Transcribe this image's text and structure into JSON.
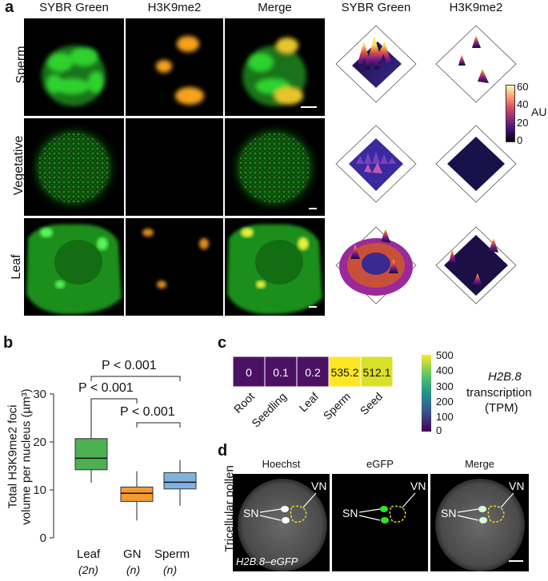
{
  "panel_a": {
    "letter": "a",
    "columns": [
      "SYBR Green",
      "H3K9me2",
      "Merge",
      "SYBR Green",
      "H3K9me2"
    ],
    "rows": [
      "Sperm",
      "Vegetative",
      "Leaf"
    ],
    "colorbar": {
      "ticks": [
        "60",
        "40",
        "20",
        "0"
      ],
      "label": "AU"
    }
  },
  "panel_b": {
    "letter": "b",
    "ylabel_line1": "Total H3K9me2 foci",
    "ylabel_line2": "volume per nucleus (µm³)",
    "yticks": [
      "0",
      "10",
      "20",
      "30"
    ],
    "categories": [
      "Leaf",
      "GN",
      "Sperm"
    ],
    "sublabels": [
      "(2n)",
      "(n)",
      "(n)"
    ],
    "annotations": [
      "P < 0.001",
      "P < 0.001",
      "P < 0.001"
    ],
    "colors": {
      "Leaf": "#4caf50",
      "GN": "#f39a33",
      "Sperm": "#7fb3dd"
    }
  },
  "chart_data": [
    {
      "type": "box",
      "categories": [
        "Leaf",
        "GN",
        "Sperm"
      ],
      "boxes": [
        {
          "name": "Leaf",
          "whisker_low": 11.5,
          "q1": 14.2,
          "median": 16.6,
          "q3": 20.7,
          "whisker_high": 28.7
        },
        {
          "name": "GN",
          "whisker_low": 3.6,
          "q1": 7.6,
          "median": 9.3,
          "q3": 10.6,
          "whisker_high": 13.9
        },
        {
          "name": "Sperm",
          "whisker_low": 6.7,
          "q1": 10.2,
          "median": 11.6,
          "q3": 13.6,
          "whisker_high": 16.2
        }
      ],
      "ylim": [
        0,
        32
      ],
      "ylabel": "Total H3K9me2 foci volume per nucleus (µm³)"
    },
    {
      "type": "heatmap",
      "categories": [
        "Root",
        "Seedling",
        "Leaf",
        "Sperm",
        "Seed"
      ],
      "values": [
        0,
        0.1,
        0.2,
        535.2,
        512.1
      ],
      "value_labels": [
        "0",
        "0.1",
        "0.2",
        "535.2",
        "512.1"
      ],
      "colorbar_ticks": [
        "500",
        "400",
        "300",
        "200",
        "100",
        "0"
      ],
      "colorbar_label": [
        "H2B.8",
        "transcription",
        "(TPM)"
      ]
    }
  ],
  "panel_c": {
    "letter": "c",
    "cell_colors": [
      "#4b1264",
      "#4b1264",
      "#4b1264",
      "#fde725",
      "#d9e02a"
    ]
  },
  "panel_d": {
    "letter": "d",
    "side_label": "Tricellular pollen",
    "columns": [
      "Hoechst",
      "eGFP",
      "Merge"
    ],
    "vn": "VN",
    "sn": "SN",
    "caption": "H2B.8–eGFP"
  }
}
